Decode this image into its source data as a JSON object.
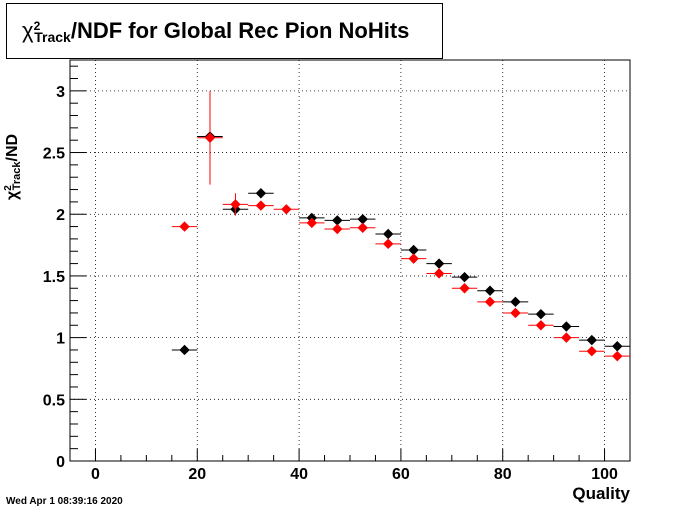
{
  "title": {
    "chi": "χ",
    "sup": "2",
    "sub": "Track",
    "rest": "/NDF for Global Rec Pion NoHits"
  },
  "ylabel": {
    "chi": "χ",
    "sup": "2",
    "sub": "Track",
    "rest": "/ND"
  },
  "xlabel": "Quality",
  "datestamp": "Wed Apr  1 08:39:16 2020",
  "colors": {
    "series_black": "#000000",
    "series_red": "#ff0000"
  },
  "chart_data": {
    "type": "scatter",
    "xlim": [
      -5,
      105
    ],
    "ylim": [
      0,
      3.25
    ],
    "grid": true,
    "xticks": [
      0,
      20,
      40,
      60,
      80,
      100
    ],
    "xtick_labels": [
      "0",
      "20",
      "40",
      "60",
      "80",
      "100"
    ],
    "yticks": [
      0,
      0.5,
      1,
      1.5,
      2,
      2.5,
      3
    ],
    "ytick_labels": [
      "0",
      "0.5",
      "1",
      "1.5",
      "2",
      "2.5",
      "3"
    ],
    "bin_half_width": 2.5,
    "series": [
      {
        "color": "#000000",
        "x": [
          17.5,
          22.5,
          27.5,
          32.5,
          42.5,
          47.5,
          52.5,
          57.5,
          62.5,
          67.5,
          72.5,
          77.5,
          82.5,
          87.5,
          92.5,
          97.5,
          102.5
        ],
        "y": [
          0.9,
          2.63,
          2.04,
          2.17,
          1.97,
          1.95,
          1.96,
          1.84,
          1.71,
          1.6,
          1.49,
          1.38,
          1.29,
          1.19,
          1.09,
          0.98,
          0.93
        ],
        "yerr": [
          0.01,
          0.02,
          0.05,
          0.02,
          0.01,
          0.01,
          0.01,
          0.01,
          0.01,
          0.01,
          0.01,
          0.01,
          0.01,
          0.01,
          0.01,
          0.01,
          0.01
        ]
      },
      {
        "color": "#ff0000",
        "x": [
          17.5,
          22.5,
          27.5,
          32.5,
          37.5,
          42.5,
          47.5,
          52.5,
          57.5,
          62.5,
          67.5,
          72.5,
          77.5,
          82.5,
          87.5,
          92.5,
          97.5,
          102.5
        ],
        "y": [
          1.9,
          2.62,
          2.08,
          2.07,
          2.04,
          1.93,
          1.88,
          1.89,
          1.76,
          1.64,
          1.52,
          1.4,
          1.29,
          1.2,
          1.1,
          1.0,
          0.89,
          0.85
        ],
        "yerr": [
          0.01,
          0.38,
          0.09,
          0.01,
          0.01,
          0.01,
          0.01,
          0.01,
          0.01,
          0.01,
          0.01,
          0.01,
          0.01,
          0.01,
          0.01,
          0.01,
          0.01,
          0.01
        ]
      }
    ]
  }
}
